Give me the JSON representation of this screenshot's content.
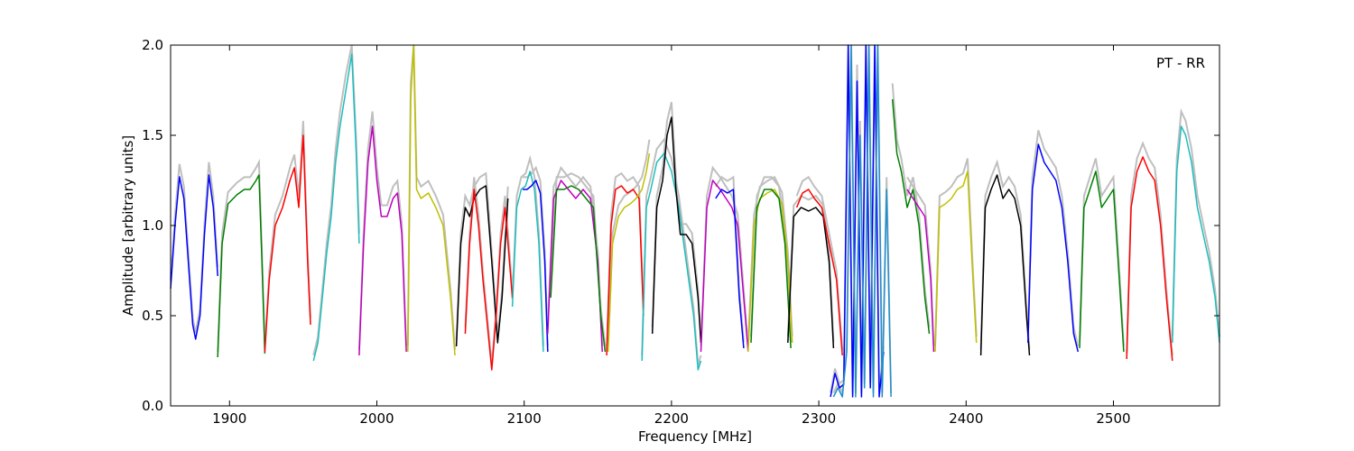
{
  "chart_data": {
    "type": "line",
    "xlabel": "Frequency [MHz]",
    "ylabel": "Amplitude [arbitrary units]",
    "annotation": "PT - RR",
    "xlim": [
      1860,
      2572
    ],
    "ylim": [
      0.0,
      2.0
    ],
    "xticks": [
      "1900",
      "2000",
      "2100",
      "2200",
      "2300",
      "2400",
      "2500"
    ],
    "yticks": [
      "0.0",
      "0.5",
      "1.0",
      "1.5",
      "2.0"
    ],
    "grid": false,
    "legend": "none",
    "colors": {
      "blue": "#0000ff",
      "green": "#008000",
      "red": "#ff0000",
      "cyan": "#1fbcbc",
      "magenta": "#bf00bf",
      "olive": "#bfbf00",
      "black": "#000000",
      "gray": "#bfbfbf",
      "steelblue": "#1f8fcf"
    },
    "series": [
      {
        "color": "blue",
        "x": [
          1860,
          1863,
          1866,
          1869,
          1872,
          1875,
          1877,
          1880,
          1883,
          1886,
          1889,
          1892
        ],
        "y": [
          0.65,
          1.0,
          1.27,
          1.15,
          0.8,
          0.45,
          0.37,
          0.5,
          0.95,
          1.28,
          1.1,
          0.72
        ]
      },
      {
        "color": "green",
        "x": [
          1892,
          1895,
          1899,
          1905,
          1910,
          1914,
          1918,
          1920,
          1922,
          1924
        ],
        "y": [
          0.27,
          0.9,
          1.12,
          1.17,
          1.2,
          1.2,
          1.25,
          1.28,
          0.8,
          0.29
        ]
      },
      {
        "color": "red",
        "x": [
          1924,
          1927,
          1931,
          1936,
          1941,
          1944,
          1947,
          1950,
          1953,
          1955
        ],
        "y": [
          0.3,
          0.7,
          1.0,
          1.1,
          1.25,
          1.32,
          1.1,
          1.5,
          0.8,
          0.45
        ]
      },
      {
        "color": "cyan",
        "x": [
          1957,
          1960,
          1963,
          1966,
          1969,
          1972,
          1975,
          1979,
          1983,
          1986,
          1988
        ],
        "y": [
          0.25,
          0.35,
          0.6,
          0.85,
          1.05,
          1.35,
          1.55,
          1.75,
          1.95,
          1.4,
          0.9
        ]
      },
      {
        "color": "magenta",
        "x": [
          1988,
          1991,
          1994,
          1997,
          2000,
          2003,
          2007,
          2011,
          2014,
          2017,
          2020
        ],
        "y": [
          0.28,
          0.9,
          1.35,
          1.55,
          1.25,
          1.05,
          1.05,
          1.15,
          1.18,
          0.95,
          0.3
        ]
      },
      {
        "color": "olive",
        "x": [
          2021,
          2023,
          2025,
          2027,
          2030,
          2035,
          2040,
          2045,
          2050,
          2053
        ],
        "y": [
          0.3,
          1.7,
          2.0,
          1.2,
          1.15,
          1.18,
          1.1,
          1.0,
          0.6,
          0.28
        ]
      },
      {
        "color": "black",
        "x": [
          2054,
          2057,
          2060,
          2063,
          2066,
          2070,
          2074,
          2078,
          2082,
          2085,
          2089
        ],
        "y": [
          0.33,
          0.9,
          1.1,
          1.05,
          1.15,
          1.2,
          1.22,
          0.8,
          0.35,
          0.6,
          1.15
        ]
      },
      {
        "color": "red",
        "x": [
          2060,
          2063,
          2066,
          2069,
          2072,
          2075,
          2078,
          2081,
          2084,
          2087,
          2090,
          2092
        ],
        "y": [
          0.4,
          0.9,
          1.2,
          1.0,
          0.7,
          0.45,
          0.2,
          0.5,
          0.9,
          1.1,
          0.8,
          0.6
        ]
      },
      {
        "color": "cyan",
        "x": [
          2092,
          2095,
          2098,
          2101,
          2104,
          2107,
          2110,
          2113
        ],
        "y": [
          0.55,
          1.1,
          1.2,
          1.22,
          1.3,
          1.2,
          0.9,
          0.3
        ]
      },
      {
        "color": "blue",
        "x": [
          2099,
          2102,
          2105,
          2108,
          2111,
          2114,
          2116
        ],
        "y": [
          1.2,
          1.2,
          1.22,
          1.25,
          1.18,
          0.8,
          0.3
        ]
      },
      {
        "color": "magenta",
        "x": [
          2116,
          2120,
          2125,
          2130,
          2135,
          2140,
          2145,
          2150,
          2153
        ],
        "y": [
          0.4,
          1.15,
          1.25,
          1.2,
          1.15,
          1.2,
          1.15,
          0.8,
          0.3
        ]
      },
      {
        "color": "green",
        "x": [
          2118,
          2122,
          2127,
          2132,
          2137,
          2142,
          2147,
          2152,
          2155
        ],
        "y": [
          0.6,
          1.2,
          1.2,
          1.22,
          1.2,
          1.15,
          1.1,
          0.5,
          0.3
        ]
      },
      {
        "color": "red",
        "x": [
          2156,
          2159,
          2162,
          2166,
          2170,
          2174,
          2178,
          2181
        ],
        "y": [
          0.28,
          1.0,
          1.2,
          1.22,
          1.18,
          1.2,
          1.15,
          0.5
        ]
      },
      {
        "color": "olive",
        "x": [
          2157,
          2160,
          2164,
          2168,
          2172,
          2176,
          2180,
          2183,
          2185
        ],
        "y": [
          0.3,
          0.9,
          1.05,
          1.1,
          1.12,
          1.15,
          1.2,
          1.3,
          1.4
        ]
      },
      {
        "color": "cyan",
        "x": [
          2180,
          2183,
          2186,
          2190,
          2195,
          2200,
          2205,
          2210,
          2215,
          2218,
          2220
        ],
        "y": [
          0.25,
          1.1,
          1.2,
          1.35,
          1.4,
          1.3,
          1.1,
          0.8,
          0.5,
          0.2,
          0.25
        ]
      },
      {
        "color": "black",
        "x": [
          2187,
          2190,
          2194,
          2197,
          2200,
          2203,
          2206,
          2210,
          2214,
          2218,
          2220
        ],
        "y": [
          0.4,
          1.1,
          1.25,
          1.5,
          1.6,
          1.2,
          0.95,
          0.95,
          0.9,
          0.6,
          0.35
        ]
      },
      {
        "color": "magenta",
        "x": [
          2220,
          2224,
          2228,
          2233,
          2237,
          2241,
          2245,
          2249,
          2252
        ],
        "y": [
          0.3,
          1.1,
          1.25,
          1.2,
          1.15,
          1.1,
          1.0,
          0.6,
          0.3
        ]
      },
      {
        "color": "blue",
        "x": [
          2230,
          2234,
          2238,
          2242,
          2246,
          2249
        ],
        "y": [
          1.15,
          1.2,
          1.18,
          1.2,
          0.6,
          0.32
        ]
      },
      {
        "color": "olive",
        "x": [
          2252,
          2256,
          2260,
          2265,
          2270,
          2275,
          2279,
          2282
        ],
        "y": [
          0.3,
          1.0,
          1.15,
          1.18,
          1.2,
          1.12,
          0.8,
          0.35
        ]
      },
      {
        "color": "green",
        "x": [
          2254,
          2258,
          2263,
          2268,
          2273,
          2277,
          2281
        ],
        "y": [
          0.35,
          1.1,
          1.2,
          1.2,
          1.15,
          0.9,
          0.32
        ]
      },
      {
        "color": "black",
        "x": [
          2279,
          2283,
          2288,
          2293,
          2298,
          2303,
          2307,
          2310
        ],
        "y": [
          0.35,
          1.05,
          1.1,
          1.08,
          1.1,
          1.05,
          0.8,
          0.32
        ]
      },
      {
        "color": "red",
        "x": [
          2285,
          2289,
          2293,
          2297,
          2302,
          2307,
          2312,
          2316
        ],
        "y": [
          1.1,
          1.18,
          1.2,
          1.15,
          1.1,
          0.9,
          0.7,
          0.28
        ]
      },
      {
        "color": "blue",
        "x": [
          2308,
          2311,
          2314,
          2317,
          2320,
          2323,
          2326,
          2329,
          2332,
          2335,
          2338,
          2341,
          2344
        ],
        "y": [
          0.05,
          0.18,
          0.1,
          0.12,
          2.0,
          0.05,
          1.8,
          0.05,
          2.0,
          0.1,
          2.0,
          0.05,
          0.3
        ]
      },
      {
        "color": "steelblue",
        "x": [
          2310,
          2313,
          2316,
          2319,
          2322,
          2325,
          2328,
          2331,
          2334,
          2337,
          2340,
          2343,
          2346,
          2349
        ],
        "y": [
          0.05,
          0.1,
          0.05,
          0.3,
          2.0,
          0.05,
          1.5,
          0.1,
          2.0,
          0.05,
          2.0,
          0.05,
          1.2,
          0.05
        ]
      },
      {
        "color": "green",
        "x": [
          2350,
          2353,
          2356,
          2360,
          2364,
          2368,
          2372,
          2375
        ],
        "y": [
          1.7,
          1.4,
          1.3,
          1.1,
          1.2,
          1.0,
          0.6,
          0.4
        ]
      },
      {
        "color": "magenta",
        "x": [
          2360,
          2364,
          2368,
          2372,
          2376,
          2378
        ],
        "y": [
          1.2,
          1.15,
          1.1,
          1.05,
          0.7,
          0.3
        ]
      },
      {
        "color": "olive",
        "x": [
          2379,
          2382,
          2386,
          2390,
          2394,
          2398,
          2401,
          2404,
          2407
        ],
        "y": [
          0.3,
          1.1,
          1.12,
          1.15,
          1.2,
          1.22,
          1.3,
          0.8,
          0.35
        ]
      },
      {
        "color": "black",
        "x": [
          2410,
          2413,
          2417,
          2421,
          2425,
          2429,
          2433,
          2437,
          2441,
          2443
        ],
        "y": [
          0.28,
          1.1,
          1.2,
          1.28,
          1.15,
          1.2,
          1.15,
          1.0,
          0.5,
          0.28
        ]
      },
      {
        "color": "blue",
        "x": [
          2442,
          2445,
          2449,
          2453,
          2457,
          2461,
          2465,
          2469,
          2473,
          2476
        ],
        "y": [
          0.35,
          1.2,
          1.45,
          1.35,
          1.3,
          1.25,
          1.1,
          0.8,
          0.4,
          0.3
        ]
      },
      {
        "color": "green",
        "x": [
          2477,
          2480,
          2484,
          2488,
          2492,
          2496,
          2500,
          2504,
          2507
        ],
        "y": [
          0.32,
          1.1,
          1.2,
          1.3,
          1.1,
          1.15,
          1.2,
          0.7,
          0.3
        ]
      },
      {
        "color": "red",
        "x": [
          2509,
          2512,
          2516,
          2520,
          2524,
          2528,
          2532,
          2536,
          2540
        ],
        "y": [
          0.26,
          1.1,
          1.3,
          1.38,
          1.3,
          1.25,
          1.0,
          0.6,
          0.25
        ]
      },
      {
        "color": "cyan",
        "x": [
          2540,
          2543,
          2546,
          2549,
          2553,
          2557,
          2561,
          2565,
          2569,
          2572
        ],
        "y": [
          0.35,
          1.3,
          1.55,
          1.5,
          1.35,
          1.1,
          0.95,
          0.8,
          0.6,
          0.35
        ]
      }
    ]
  }
}
